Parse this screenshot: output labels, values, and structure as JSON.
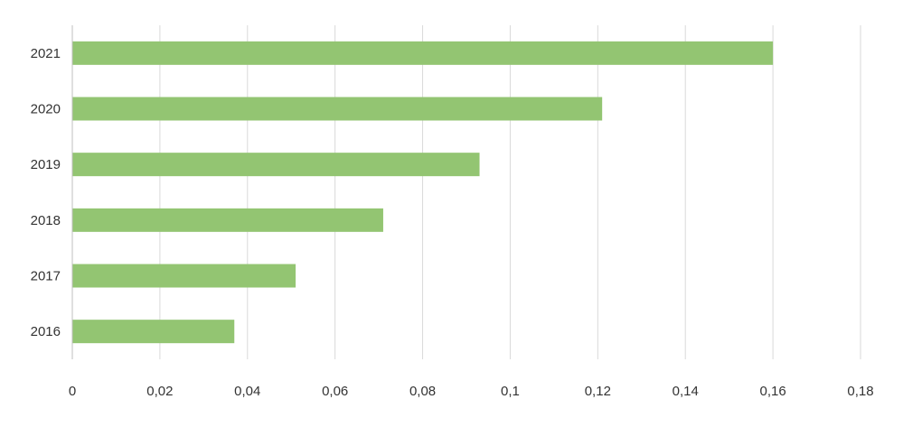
{
  "chart_data": {
    "type": "bar",
    "orientation": "horizontal",
    "categories": [
      "2021",
      "2020",
      "2019",
      "2018",
      "2017",
      "2016"
    ],
    "values": [
      0.16,
      0.121,
      0.093,
      0.071,
      0.051,
      0.037
    ],
    "xlim": [
      0,
      0.18
    ],
    "x_ticks": [
      "0",
      "0,02",
      "0,04",
      "0,06",
      "0,08",
      "0,1",
      "0,12",
      "0,14",
      "0,16",
      "0,18"
    ],
    "title": "",
    "xlabel": "",
    "ylabel": "",
    "grid": "vertical",
    "legend": "none",
    "colors": {
      "bar": "#93c572",
      "grid": "#d9d9d9",
      "axis": "#bfbfbf"
    }
  }
}
